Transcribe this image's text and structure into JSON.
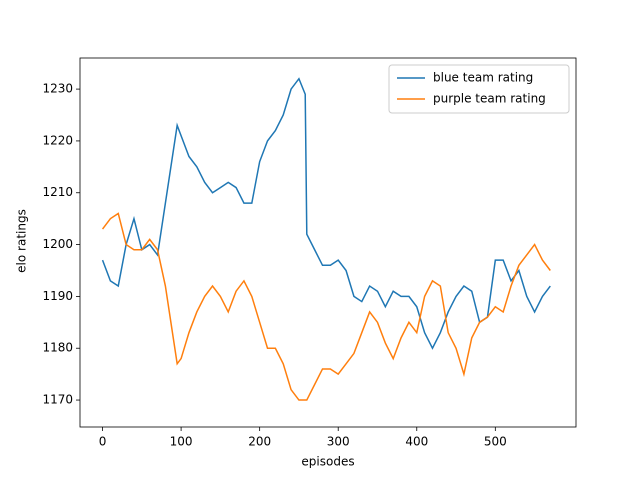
{
  "chart_data": {
    "type": "line",
    "xlabel": "episodes",
    "ylabel": "elo ratings",
    "x": [
      0,
      10,
      20,
      30,
      40,
      50,
      60,
      70,
      80,
      90,
      95,
      100,
      110,
      120,
      130,
      140,
      150,
      160,
      170,
      180,
      190,
      200,
      210,
      220,
      230,
      240,
      250,
      258,
      260,
      270,
      280,
      290,
      300,
      310,
      320,
      330,
      340,
      350,
      360,
      370,
      380,
      390,
      400,
      410,
      420,
      430,
      440,
      450,
      460,
      470,
      480,
      490,
      500,
      510,
      520,
      530,
      540,
      550,
      560,
      570
    ],
    "series": [
      {
        "name": "blue team rating",
        "color": "#1f77b4",
        "values": [
          1197,
          1193,
          1192,
          1200,
          1205,
          1199,
          1200,
          1198,
          1208,
          1218,
          1223,
          1221,
          1217,
          1215,
          1212,
          1210,
          1211,
          1212,
          1211,
          1208,
          1208,
          1216,
          1220,
          1222,
          1225,
          1230,
          1232,
          1229,
          1202,
          1199,
          1196,
          1196,
          1197,
          1195,
          1190,
          1189,
          1192,
          1191,
          1188,
          1191,
          1190,
          1190,
          1188,
          1183,
          1180,
          1183,
          1187,
          1190,
          1192,
          1191,
          1185,
          1186,
          1197,
          1197,
          1193,
          1195,
          1190,
          1187,
          1190,
          1192
        ]
      },
      {
        "name": "purple team rating",
        "color": "#ff7f0e",
        "values": [
          1203,
          1205,
          1206,
          1200,
          1199,
          1199,
          1201,
          1199,
          1192,
          1182,
          1177,
          1178,
          1183,
          1187,
          1190,
          1192,
          1190,
          1187,
          1191,
          1193,
          1190,
          1185,
          1180,
          1180,
          1177,
          1172,
          1170,
          1170,
          1170,
          1173,
          1176,
          1176,
          1175,
          1177,
          1179,
          1183,
          1187,
          1185,
          1181,
          1178,
          1182,
          1185,
          1183,
          1190,
          1193,
          1192,
          1183,
          1180,
          1175,
          1182,
          1185,
          1186,
          1188,
          1187,
          1192,
          1196,
          1198,
          1200,
          1197,
          1195
        ]
      }
    ],
    "xlim": [
      -28.7,
      602.7
    ],
    "ylim": [
      1164.8,
      1236.0
    ],
    "xticks": [
      0,
      100,
      200,
      300,
      400,
      500
    ],
    "yticks": [
      1170,
      1180,
      1190,
      1200,
      1210,
      1220,
      1230
    ],
    "legend": "upper right"
  }
}
